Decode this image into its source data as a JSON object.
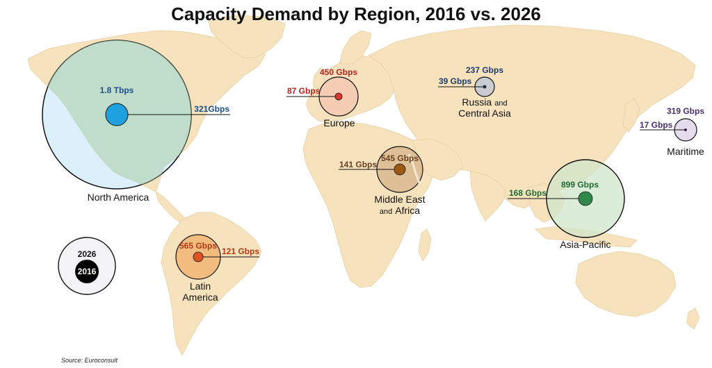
{
  "title": "Capacity Demand by Region, 2016 vs. 2026",
  "source": "Source: Euroconsult",
  "legend": {
    "outer_label": "2026",
    "inner_label": "2016"
  },
  "colors": {
    "land": "#f6e3bd",
    "ocean": "#ffffff",
    "north_america": "#1ea1df",
    "europe": "#d93a2e",
    "russia": "#5a6270",
    "maritime": "#5e3f7e",
    "mea": "#9a5a14",
    "asia": "#2f8a4a",
    "latam": "#e0531f"
  },
  "regions": {
    "north_america": {
      "name": "North America",
      "v2026": "1.8 Tbps",
      "v2016": "321Gbps"
    },
    "europe": {
      "name": "Europe",
      "v2026": "450 Gbps",
      "v2016": "87 Gbps"
    },
    "russia": {
      "name_main": "Russia",
      "name_and": "and",
      "name_line2": "Central Asia",
      "v2026": "237 Gbps",
      "v2016": "39 Gbps"
    },
    "maritime": {
      "name": "Maritime",
      "v2026": "319 Gbps",
      "v2016": "17 Gbps"
    },
    "mea": {
      "name_line1": "Middle East",
      "name_and": "and",
      "name_line2": "Africa",
      "v2026": "545 Gbps",
      "v2016": "141 Gbps"
    },
    "asia": {
      "name": "Asia-Pacific",
      "v2026": "899 Gbps",
      "v2016": "168 Gbps"
    },
    "latam": {
      "name_line1": "Latin",
      "name_line2": "America",
      "v2026": "565 Gbps",
      "v2016": "121 Gbps"
    }
  }
}
